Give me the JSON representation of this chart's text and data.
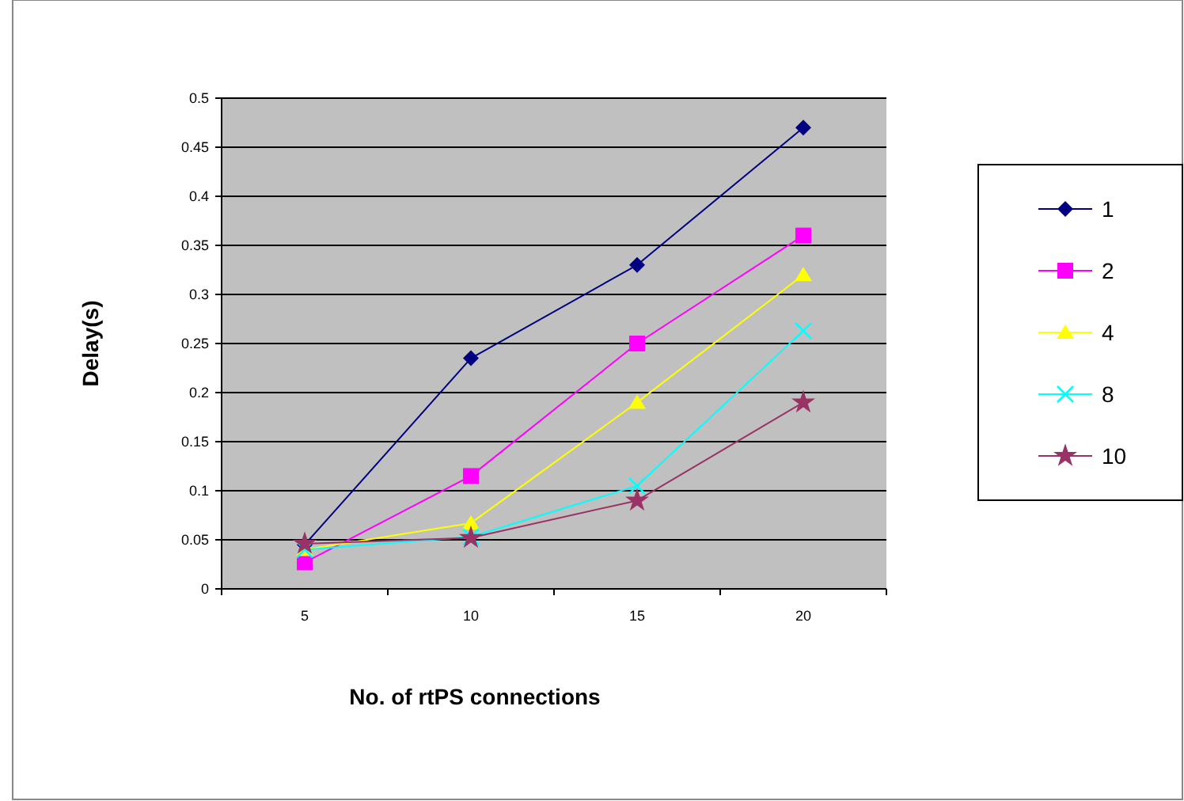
{
  "chart_data": {
    "type": "line",
    "xlabel": "No. of rtPS connections",
    "ylabel": "Delay(s)",
    "categories": [
      "5",
      "10",
      "15",
      "20"
    ],
    "ylim": [
      0,
      0.5
    ],
    "yticks": [
      0,
      0.05,
      0.1,
      0.15,
      0.2,
      0.25,
      0.3,
      0.35,
      0.4,
      0.45,
      0.5
    ],
    "grid": "y",
    "legend": "right",
    "series": [
      {
        "name": "1",
        "color": "#000080",
        "marker": "diamond",
        "values": [
          0.045,
          0.235,
          0.33,
          0.47
        ]
      },
      {
        "name": "2",
        "color": "#ff00ff",
        "marker": "square",
        "values": [
          0.027,
          0.115,
          0.25,
          0.36
        ]
      },
      {
        "name": "4",
        "color": "#ffff00",
        "marker": "triangle",
        "values": [
          0.04,
          0.067,
          0.19,
          0.32
        ]
      },
      {
        "name": "8",
        "color": "#00ffff",
        "marker": "cross",
        "values": [
          0.04,
          0.053,
          0.105,
          0.263
        ]
      },
      {
        "name": "10",
        "color": "#993366",
        "marker": "star",
        "values": [
          0.046,
          0.052,
          0.09,
          0.19
        ]
      }
    ]
  }
}
